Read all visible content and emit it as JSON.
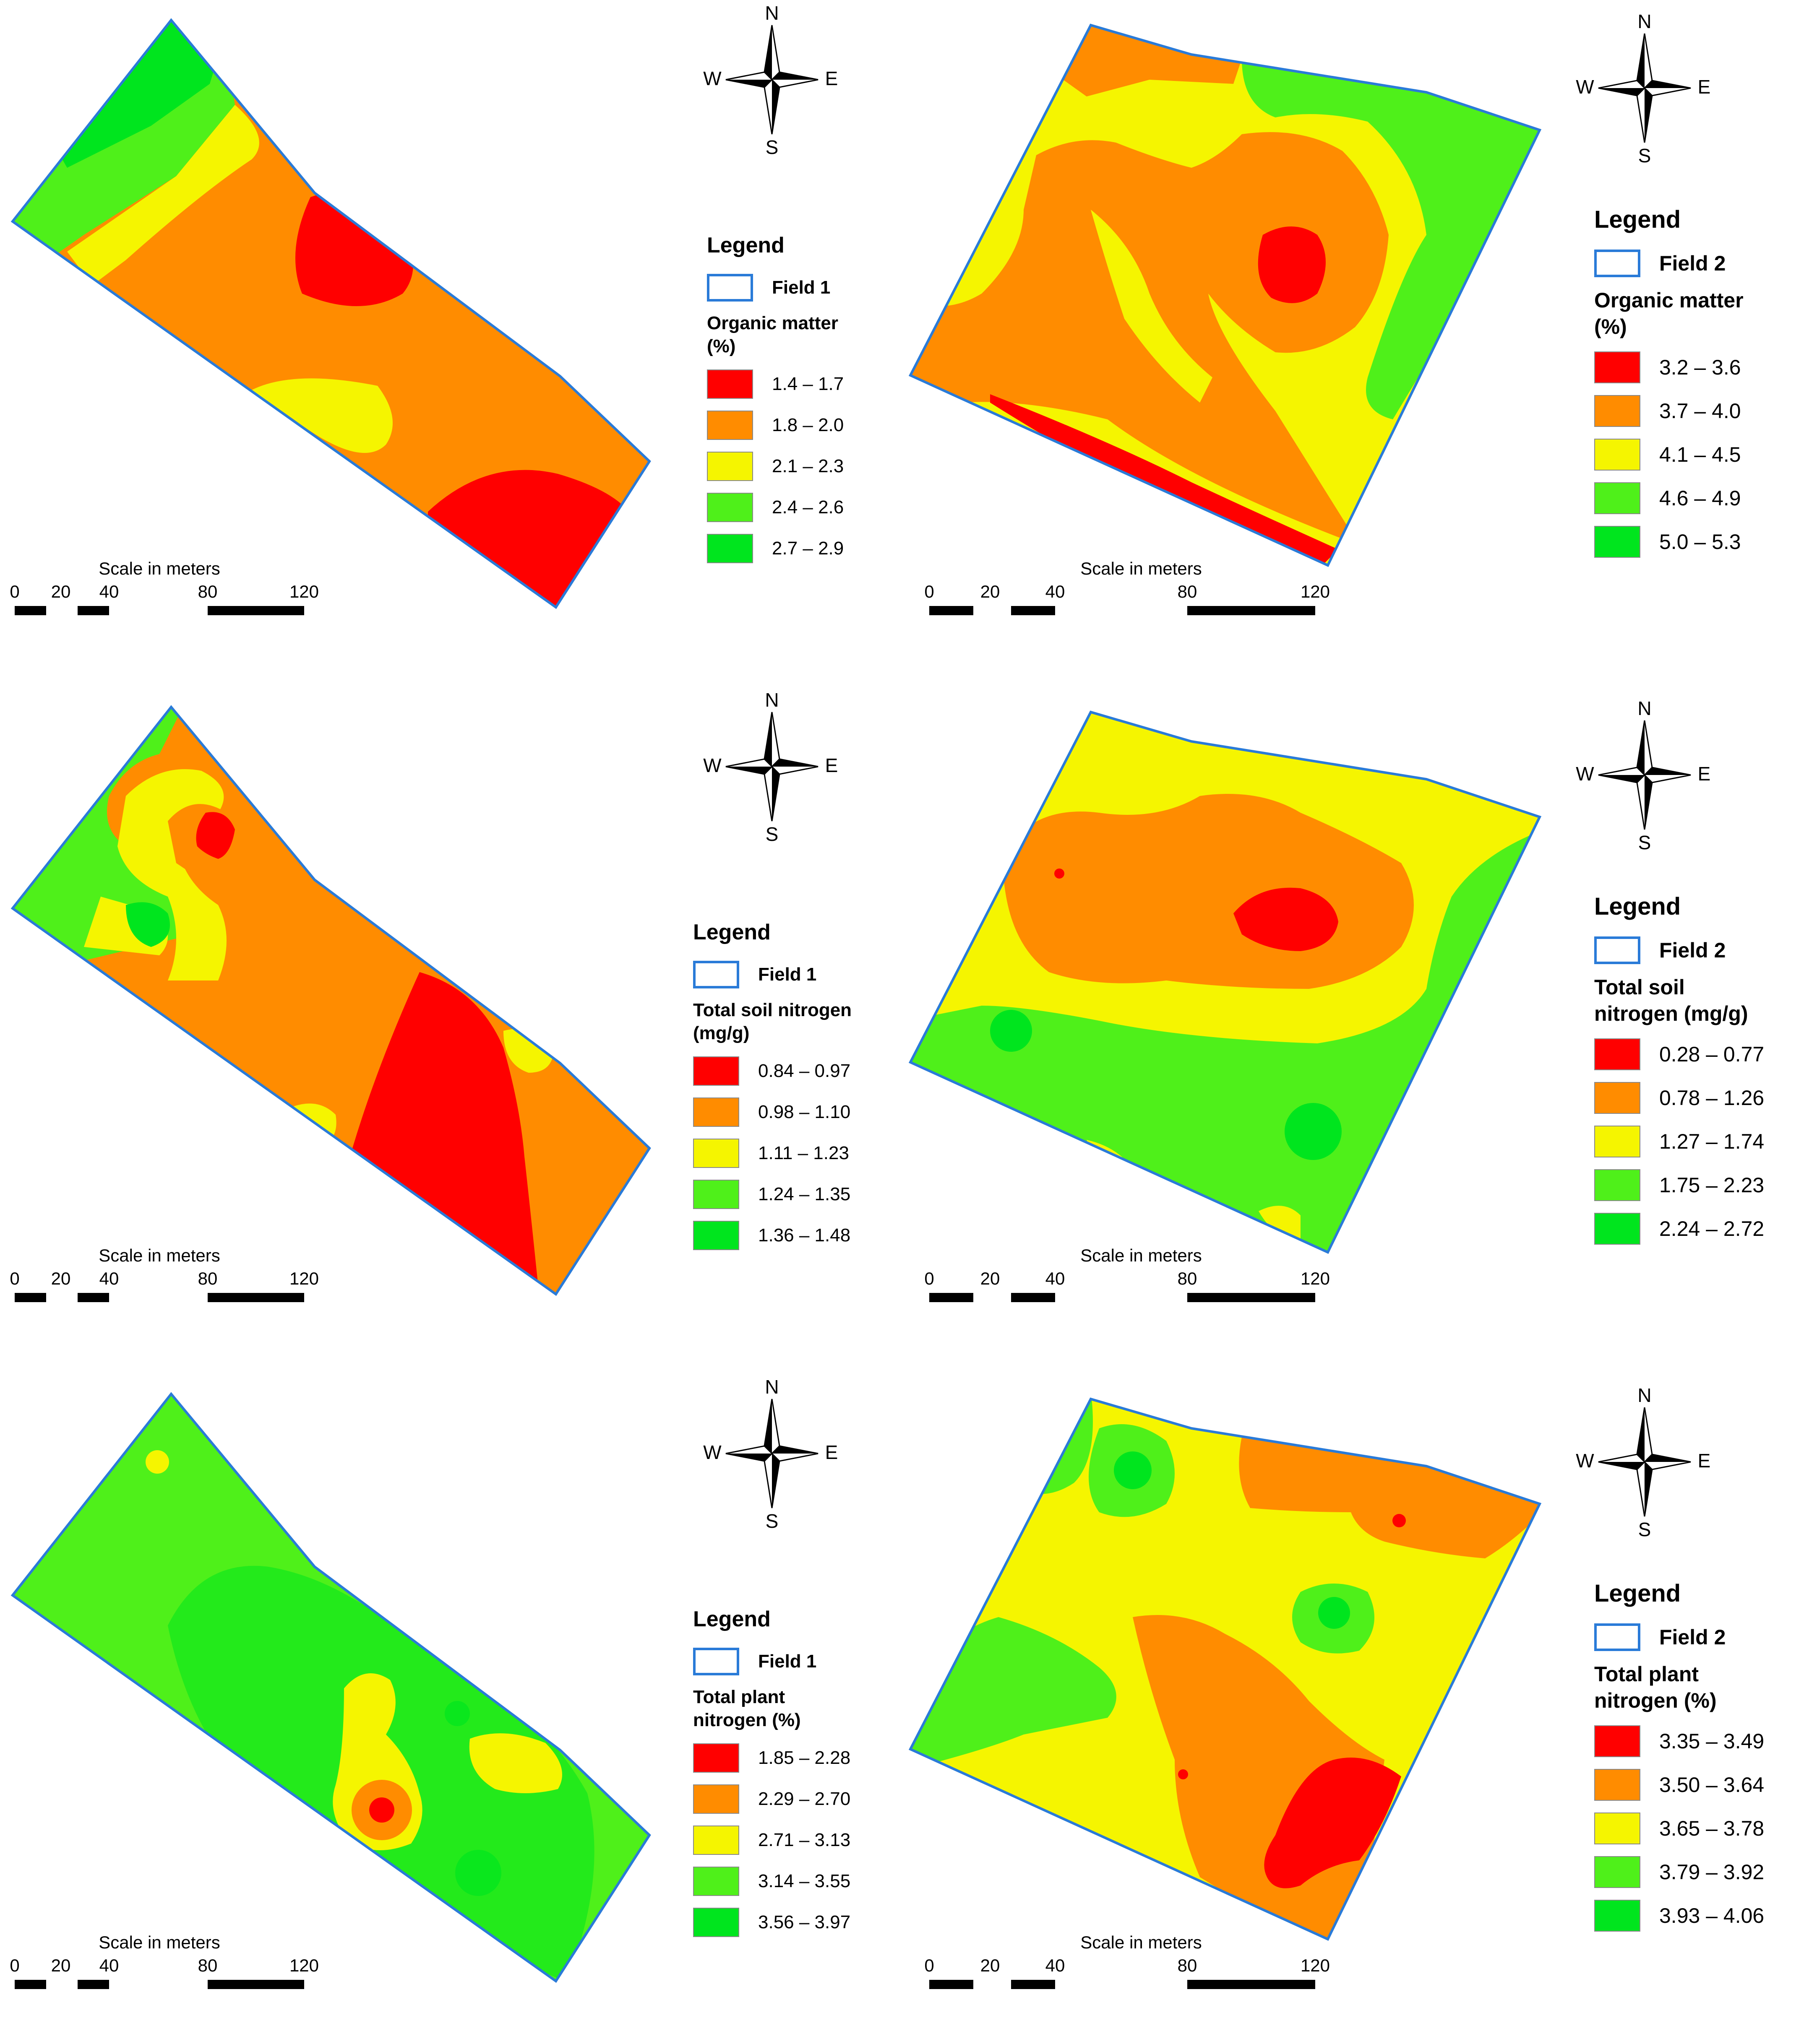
{
  "colors": {
    "red": "#ff0000",
    "orange": "#ff8c00",
    "yellow": "#f5f500",
    "light_green": "#4ff01a",
    "green": "#00e51e",
    "boundary": "#2a7bd8"
  },
  "compass": {
    "n": "N",
    "s": "S",
    "e": "E",
    "w": "W"
  },
  "scale": {
    "title": "Scale in meters",
    "ticks": [
      "0",
      "20",
      "40",
      "80",
      "120"
    ]
  },
  "panels": [
    {
      "legend_title": "Legend",
      "field": "Field 1",
      "variable_lines": [
        "Organic matter",
        "(%)"
      ],
      "classes": [
        "1.4 – 1.7",
        "1.8 – 2.0",
        "2.1 – 2.3",
        "2.4 – 2.6",
        "2.7 – 2.9"
      ]
    },
    {
      "legend_title": "Legend",
      "field": "Field 2",
      "variable_lines": [
        "Organic matter",
        "(%)"
      ],
      "classes": [
        "3.2 – 3.6",
        "3.7 – 4.0",
        "4.1 – 4.5",
        "4.6 – 4.9",
        "5.0 – 5.3"
      ]
    },
    {
      "legend_title": "Legend",
      "field": "Field 1",
      "variable_lines": [
        "Total soil nitrogen",
        "(mg/g)"
      ],
      "classes": [
        "0.84 – 0.97",
        "0.98 – 1.10",
        "1.11 – 1.23",
        "1.24 – 1.35",
        "1.36 – 1.48"
      ]
    },
    {
      "legend_title": "Legend",
      "field": "Field 2",
      "variable_lines": [
        "Total soil",
        "nitrogen (mg/g)"
      ],
      "classes": [
        "0.28 – 0.77",
        "0.78 – 1.26",
        "1.27 – 1.74",
        "1.75 – 2.23",
        "2.24 – 2.72"
      ]
    },
    {
      "legend_title": "Legend",
      "field": "Field 1",
      "variable_lines": [
        "Total plant",
        "nitrogen (%)"
      ],
      "classes": [
        "1.85 – 2.28",
        "2.29 – 2.70",
        "2.71 – 3.13",
        "3.14 – 3.55",
        "3.56 – 3.97"
      ]
    },
    {
      "legend_title": "Legend",
      "field": "Field 2",
      "variable_lines": [
        "Total plant",
        "nitrogen (%)"
      ],
      "classes": [
        "3.35 – 3.49",
        "3.50 – 3.64",
        "3.65 – 3.78",
        "3.79 – 3.92",
        "3.93 – 4.06"
      ]
    }
  ]
}
